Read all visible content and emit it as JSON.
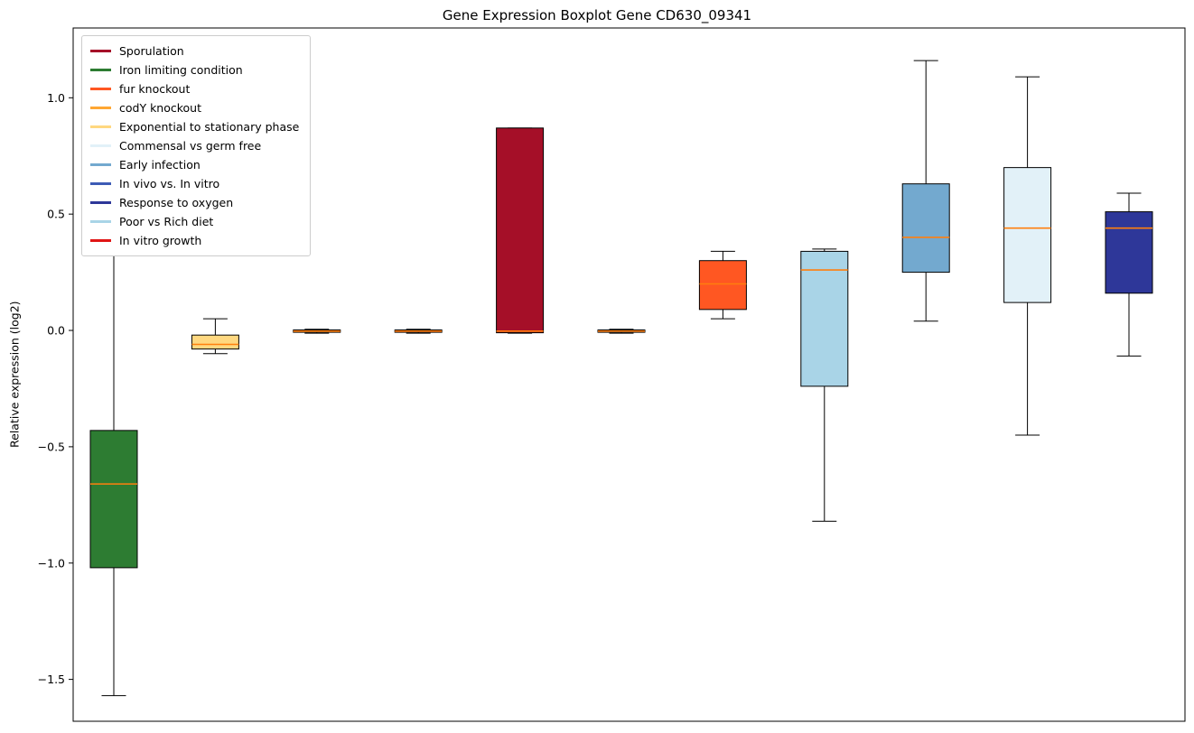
{
  "chart_data": {
    "type": "boxplot",
    "title": "Gene Expression Boxplot Gene CD630_09341",
    "ylabel": "Relative expression (log2)",
    "xlabel": "",
    "ylim": [
      -1.68,
      1.3
    ],
    "grid": false,
    "legend_position": "upper-left",
    "yticks": [
      {
        "value": 1.0,
        "label": "1.0"
      },
      {
        "value": 0.5,
        "label": "0.5"
      },
      {
        "value": 0.0,
        "label": "0.0"
      },
      {
        "value": -0.5,
        "label": "−0.5"
      },
      {
        "value": -1.0,
        "label": "−1.0"
      },
      {
        "value": -1.5,
        "label": "−1.5"
      }
    ],
    "median_color": "#FF7F0E",
    "edge_color": "#000000",
    "whisker_color": "#000000",
    "legend": [
      {
        "label": "Sporulation",
        "color": "#A50F28"
      },
      {
        "label": "Iron limiting condition",
        "color": "#2D7C32"
      },
      {
        "label": "fur knockout",
        "color": "#FF5722"
      },
      {
        "label": "codY knockout",
        "color": "#FFA733"
      },
      {
        "label": "Exponential to stationary phase",
        "color": "#FFD880"
      },
      {
        "label": "Commensal vs germ free",
        "color": "#E2F1F8"
      },
      {
        "label": "Early infection",
        "color": "#73A9CF"
      },
      {
        "label": "In vivo vs. In vitro",
        "color": "#3D5BB5"
      },
      {
        "label": "Response to oxygen",
        "color": "#2E3799"
      },
      {
        "label": "Poor vs Rich diet",
        "color": "#A9D4E7"
      },
      {
        "label": "In vitro growth",
        "color": "#E01515"
      }
    ],
    "boxes": [
      {
        "label": "Iron limiting condition",
        "color": "#2D7C32",
        "whislo": -1.57,
        "q1": -1.02,
        "med": -0.66,
        "q3": -0.43,
        "whishi": 0.35
      },
      {
        "label": "Exponential to stationary phase",
        "color": "#FFD880",
        "whislo": -0.1,
        "q1": -0.08,
        "med": -0.06,
        "q3": -0.02,
        "whishi": 0.05
      },
      {
        "label": "codY knockout",
        "color": "#FFA733",
        "whislo": -0.012,
        "q1": -0.008,
        "med": -0.003,
        "q3": 0.002,
        "whishi": 0.005
      },
      {
        "label": "In vitro growth",
        "color": "#E01515",
        "whislo": -0.012,
        "q1": -0.008,
        "med": -0.003,
        "q3": 0.002,
        "whishi": 0.005
      },
      {
        "label": "Sporulation",
        "color": "#A50F28",
        "whislo": -0.012,
        "q1": -0.01,
        "med": -0.003,
        "q3": 0.87,
        "whishi": 0.87
      },
      {
        "label": "In vivo vs. In vitro",
        "color": "#3D5BB5",
        "whislo": -0.012,
        "q1": -0.008,
        "med": -0.003,
        "q3": 0.002,
        "whishi": 0.005
      },
      {
        "label": "fur knockout",
        "color": "#FF5722",
        "whislo": 0.05,
        "q1": 0.09,
        "med": 0.2,
        "q3": 0.3,
        "whishi": 0.34
      },
      {
        "label": "Poor vs Rich diet",
        "color": "#A9D4E7",
        "whislo": -0.82,
        "q1": -0.24,
        "med": 0.26,
        "q3": 0.34,
        "whishi": 0.35
      },
      {
        "label": "Early infection",
        "color": "#73A9CF",
        "whislo": 0.04,
        "q1": 0.25,
        "med": 0.4,
        "q3": 0.63,
        "whishi": 1.16
      },
      {
        "label": "Commensal vs germ free",
        "color": "#E2F1F8",
        "whislo": -0.45,
        "q1": 0.12,
        "med": 0.44,
        "q3": 0.7,
        "whishi": 1.09
      },
      {
        "label": "Response to oxygen",
        "color": "#2E3799",
        "whislo": -0.11,
        "q1": 0.16,
        "med": 0.44,
        "q3": 0.51,
        "whishi": 0.59
      }
    ]
  }
}
